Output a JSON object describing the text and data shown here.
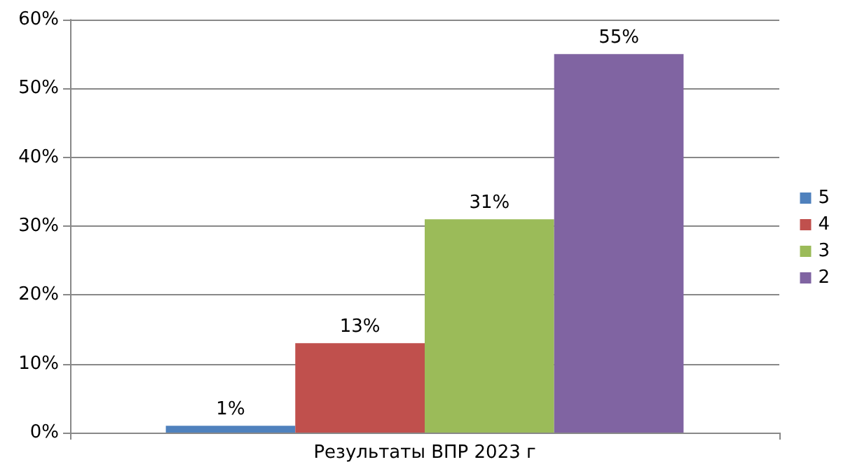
{
  "chart_data": {
    "type": "bar",
    "categories": [
      "Результаты ВПР 2023 г"
    ],
    "series": [
      {
        "name": "5",
        "color": "#4f81bd",
        "values": [
          1
        ],
        "value_labels": [
          "1%"
        ]
      },
      {
        "name": "4",
        "color": "#c0504d",
        "values": [
          13
        ],
        "value_labels": [
          "13%"
        ]
      },
      {
        "name": "3",
        "color": "#9bbb59",
        "values": [
          31
        ],
        "value_labels": [
          "31%"
        ]
      },
      {
        "name": "2",
        "color": "#8064a2",
        "values": [
          55
        ],
        "value_labels": [
          "55%"
        ]
      }
    ],
    "ylim": [
      0,
      60
    ],
    "yticks": [
      {
        "value": 0,
        "label": "0%"
      },
      {
        "value": 10,
        "label": "10%"
      },
      {
        "value": 20,
        "label": "20%"
      },
      {
        "value": 30,
        "label": "30%"
      },
      {
        "value": 40,
        "label": "40%"
      },
      {
        "value": 50,
        "label": "50%"
      },
      {
        "value": 60,
        "label": "60%"
      }
    ],
    "grid": "y",
    "legend": "right"
  }
}
